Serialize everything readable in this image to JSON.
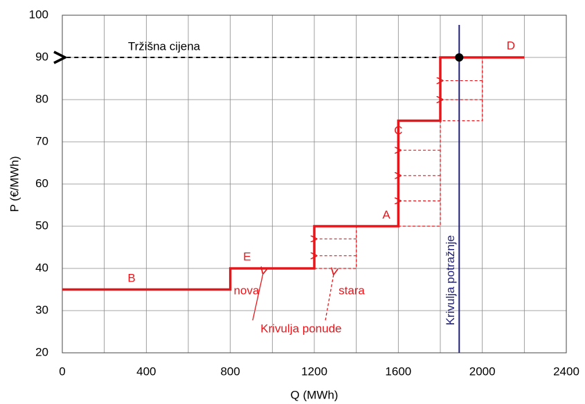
{
  "chart_data": {
    "type": "step",
    "xlabel": "Q  (MWh)",
    "ylabel": "P  (€/MWh)",
    "xlim": [
      0,
      2400
    ],
    "ylim": [
      20,
      100
    ],
    "xticks": [
      0,
      400,
      800,
      1200,
      1600,
      2000,
      2400
    ],
    "x_minor_grid": [
      200,
      600,
      1000,
      1400,
      1800,
      2200
    ],
    "yticks": [
      20,
      30,
      40,
      50,
      60,
      70,
      80,
      90,
      100
    ],
    "grid": true,
    "series": [
      {
        "name": "nova",
        "color": "#e8161b",
        "style": "solid",
        "x": [
          0,
          800,
          800,
          1200,
          1200,
          1600,
          1600,
          1800,
          1800,
          2200
        ],
        "values": [
          35,
          35,
          40,
          40,
          50,
          50,
          75,
          75,
          90,
          90
        ]
      },
      {
        "name": "stara",
        "color": "#e8161b",
        "style": "dashed",
        "x": [
          1200,
          1400,
          1400,
          1800,
          1800,
          2000,
          2000,
          1800
        ],
        "values": [
          40,
          40,
          50,
          50,
          75,
          75,
          90,
          90
        ]
      }
    ],
    "demand": {
      "name": "Krivulja potražnje",
      "x": 1890,
      "color": "#1f1f7a"
    },
    "market_price": {
      "name": "Tržišna cijena",
      "value": 90
    },
    "shift_arrows": [
      {
        "y": 43,
        "from": 1400,
        "to": 1200
      },
      {
        "y": 47,
        "from": 1400,
        "to": 1200
      },
      {
        "y": 56,
        "from": 1800,
        "to": 1600
      },
      {
        "y": 62,
        "from": 1800,
        "to": 1600
      },
      {
        "y": 68,
        "from": 1800,
        "to": 1600
      },
      {
        "y": 80,
        "from": 2000,
        "to": 1800
      },
      {
        "y": 84.5,
        "from": 2000,
        "to": 1800
      }
    ],
    "annotations": [
      {
        "text": "B",
        "x": 330,
        "y": 37.5
      },
      {
        "text": "E",
        "x": 880,
        "y": 42.6
      },
      {
        "text": "A",
        "x": 1543,
        "y": 52.5
      },
      {
        "text": "C",
        "x": 1600,
        "y": 72.5
      },
      {
        "text": "D",
        "x": 2136,
        "y": 92.6
      },
      {
        "text": "nova",
        "x": 877,
        "y": 34.6
      },
      {
        "text": "stara",
        "x": 1378,
        "y": 34.6
      },
      {
        "text": "Krivulja ponude",
        "x": 1137,
        "y": 25.6
      }
    ]
  }
}
